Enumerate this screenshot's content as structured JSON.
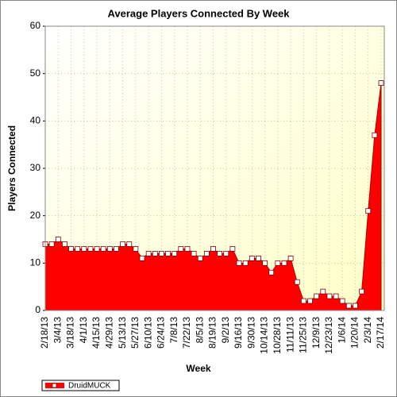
{
  "chart_data": {
    "type": "area",
    "title": "Average Players Connected By Week",
    "x_label": "Week",
    "y_label": "Players Connected",
    "categories": [
      "2/18/13",
      null,
      "3/4/13",
      null,
      "3/18/13",
      null,
      "4/1/13",
      null,
      "4/15/13",
      null,
      "4/29/13",
      null,
      "5/13/13",
      null,
      "5/27/13",
      null,
      "6/10/13",
      null,
      "6/24/13",
      null,
      "7/8/13",
      null,
      "7/22/13",
      null,
      "8/5/13",
      null,
      "8/19/13",
      null,
      "9/2/13",
      null,
      "9/16/13",
      null,
      "9/30/13",
      null,
      "10/14/13",
      null,
      "10/28/13",
      null,
      "11/11/13",
      null,
      "11/25/13",
      null,
      "12/9/13",
      null,
      "12/23/13",
      null,
      "1/6/14",
      null,
      "1/20/14",
      null,
      "2/3/14",
      null,
      "2/17/14"
    ],
    "series": [
      {
        "name": "DruidMUCK",
        "color": "#ff0000",
        "values": [
          14,
          14,
          15,
          14,
          13,
          13,
          13,
          13,
          13,
          13,
          13,
          13,
          14,
          14,
          13,
          11,
          12,
          12,
          12,
          12,
          12,
          13,
          13,
          12,
          11,
          12,
          13,
          12,
          12,
          13,
          10,
          10,
          11,
          11,
          10,
          8,
          10,
          10,
          11,
          6,
          2,
          2,
          3,
          4,
          3,
          3,
          2,
          1,
          1,
          4,
          21,
          37,
          48
        ]
      }
    ],
    "ylim": [
      0,
      60
    ],
    "yticks": [
      0,
      10,
      20,
      30,
      40,
      50,
      60
    ],
    "grid": true,
    "legend": "bottom-left"
  }
}
